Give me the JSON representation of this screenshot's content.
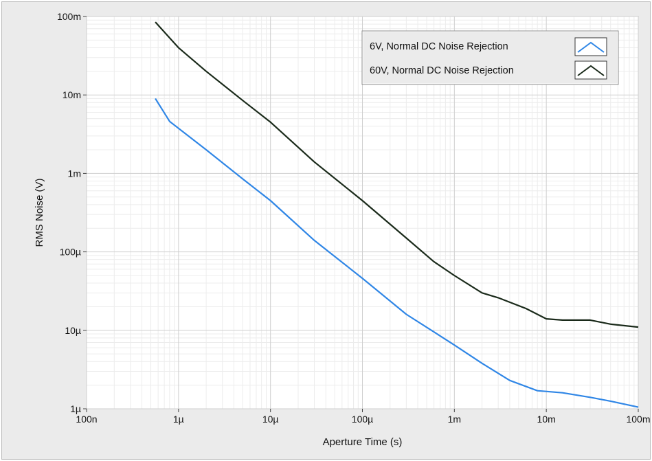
{
  "chart_data": {
    "type": "line",
    "title": "",
    "xlabel": "Aperture Time (s)",
    "ylabel": "RMS Noise (V)",
    "x_scale": "log",
    "y_scale": "log",
    "xlim": [
      1e-07,
      0.1
    ],
    "ylim": [
      1e-06,
      0.1
    ],
    "grid": true,
    "legend_position": "top-right",
    "x_ticks": [
      {
        "value": 1e-07,
        "label": "100n"
      },
      {
        "value": 1e-06,
        "label": "1µ"
      },
      {
        "value": 1e-05,
        "label": "10µ"
      },
      {
        "value": 0.0001,
        "label": "100µ"
      },
      {
        "value": 0.001,
        "label": "1m"
      },
      {
        "value": 0.01,
        "label": "10m"
      },
      {
        "value": 0.1,
        "label": "100m"
      }
    ],
    "y_ticks": [
      {
        "value": 1e-06,
        "label": "1µ"
      },
      {
        "value": 1e-05,
        "label": "10µ"
      },
      {
        "value": 0.0001,
        "label": "100µ"
      },
      {
        "value": 0.001,
        "label": "1m"
      },
      {
        "value": 0.01,
        "label": "10m"
      },
      {
        "value": 0.1,
        "label": "100m"
      }
    ],
    "series": [
      {
        "name": "6V, Normal DC Noise Rejection",
        "color": "#2f86e6",
        "x": [
          5.6e-07,
          8e-07,
          2e-06,
          5e-06,
          1e-05,
          3e-05,
          0.0001,
          0.0003,
          0.0007,
          0.001,
          0.002,
          0.004,
          0.008,
          0.015,
          0.03,
          0.05,
          0.1
        ],
        "y": [
          0.009,
          0.0046,
          0.002,
          0.00085,
          0.00045,
          0.00014,
          4.6e-05,
          1.6e-05,
          8.5e-06,
          6.5e-06,
          3.8e-06,
          2.3e-06,
          1.7e-06,
          1.6e-06,
          1.4e-06,
          1.25e-06,
          1.05e-06
        ]
      },
      {
        "name": "60V, Normal DC Noise Rejection",
        "color": "#1a2a1a",
        "x": [
          5.6e-07,
          1e-06,
          2e-06,
          5e-06,
          1e-05,
          3e-05,
          0.0001,
          0.0003,
          0.0006,
          0.001,
          0.002,
          0.003,
          0.006,
          0.01,
          0.015,
          0.03,
          0.05,
          0.1
        ],
        "y": [
          0.085,
          0.04,
          0.02,
          0.0085,
          0.0045,
          0.0014,
          0.00045,
          0.00015,
          7.5e-05,
          5e-05,
          3e-05,
          2.6e-05,
          1.9e-05,
          1.4e-05,
          1.35e-05,
          1.35e-05,
          1.2e-05,
          1.1e-05
        ]
      }
    ]
  }
}
